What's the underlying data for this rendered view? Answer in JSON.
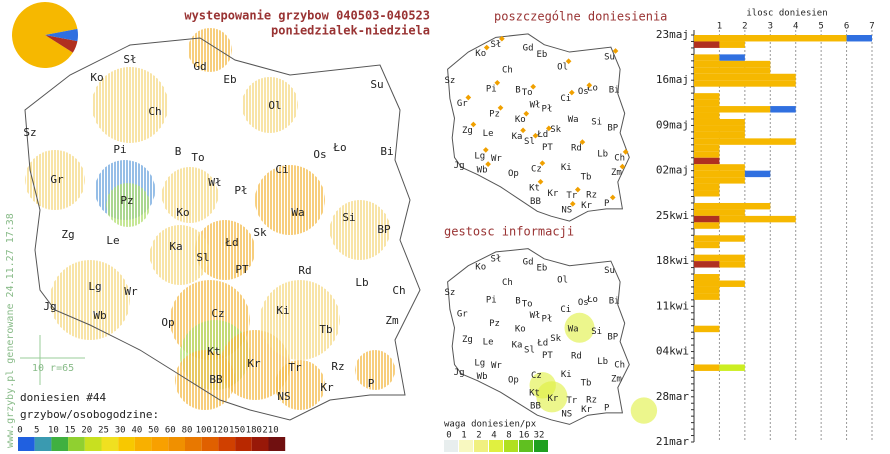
{
  "header": {
    "title": "wystepowanie grzybow 040503-040523",
    "subtitle": "poniedzialek-niedziela"
  },
  "pie": {
    "values": [
      88,
      6,
      6
    ],
    "colors": [
      "#f6b800",
      "#b03020",
      "#3070e0"
    ]
  },
  "map": {
    "labels": [
      "Sł",
      "Gd",
      "Ko",
      "Eb",
      "Su",
      "Ch",
      "Ol",
      "Sz",
      "Pi",
      "B",
      "To",
      "Ło",
      "Os",
      "Bi",
      "Gr",
      "Wł",
      "Ci",
      "Pł",
      "Pz",
      "Wa",
      "Ko",
      "Si",
      "Zg",
      "Le",
      "Ka",
      "Sk",
      "Łd",
      "BP",
      "Sl",
      "PT",
      "Rd",
      "Lb",
      "Lg",
      "Wr",
      "Ch",
      "Jg",
      "Wb",
      "Op",
      "Cz",
      "Ki",
      "Zm",
      "Tb",
      "Kt",
      "Kr",
      "Tr",
      "Rz",
      "P",
      "BB",
      "NS",
      "Kr"
    ]
  },
  "side_note": "www.grzyby.pl generowane 24.11.27 17:38",
  "scale_note": "10 r=65",
  "report_count": "doniesien #44",
  "legend": {
    "title": "grzybow/osobogodzine:",
    "ticks": [
      0,
      5,
      10,
      15,
      20,
      25,
      30,
      40,
      50,
      60,
      80,
      100,
      120,
      150,
      180,
      210
    ],
    "colors": [
      "#2060e0",
      "#3a9ab0",
      "#40b040",
      "#90d030",
      "#c8e020",
      "#f0e020",
      "#f8c800",
      "#f8b000",
      "#f8a000",
      "#f09000",
      "#e87800",
      "#e06000",
      "#d04000",
      "#b82800",
      "#981808",
      "#701010"
    ]
  },
  "small_map1": {
    "title": "poszczególne doniesienia"
  },
  "small_map2": {
    "title": "gestosc informacji"
  },
  "weight_legend": {
    "title": "waga doniesien/px",
    "ticks": [
      0,
      1,
      2,
      4,
      8,
      16,
      32
    ],
    "colors": [
      "#e8eeee",
      "#f8f8c0",
      "#f0f080",
      "#e0f040",
      "#b0e020",
      "#60c020",
      "#20a020"
    ]
  },
  "chart_data": {
    "type": "bar",
    "orientation": "horizontal",
    "x_label": "ilosc doniesien",
    "xlim": [
      0,
      7
    ],
    "xticks": [
      1,
      2,
      3,
      4,
      5,
      6,
      7
    ],
    "grid": true,
    "categories": [
      "23maj",
      null,
      null,
      null,
      null,
      null,
      null,
      "16maj",
      null,
      null,
      null,
      null,
      null,
      null,
      "09maj",
      null,
      null,
      null,
      null,
      null,
      null,
      "02maj",
      null,
      null,
      null,
      null,
      null,
      null,
      "25kwi",
      null,
      null,
      null,
      null,
      null,
      null,
      "18kwi",
      null,
      null,
      null,
      null,
      null,
      null,
      "11kwi",
      null,
      null,
      null,
      null,
      null,
      null,
      "04kwi",
      null,
      null,
      null,
      null,
      null,
      null,
      "28mar",
      null,
      null,
      null,
      null,
      null,
      null,
      "21mar"
    ],
    "series": [
      {
        "color": "#b03020",
        "values": [
          0,
          1,
          0,
          0,
          0,
          0,
          0,
          0,
          0,
          0,
          0,
          0,
          0,
          0,
          0,
          0,
          0,
          0,
          0,
          1,
          0,
          0,
          0,
          0,
          0,
          0,
          0,
          0,
          1,
          0,
          0,
          0,
          0,
          0,
          0,
          1,
          0,
          0,
          0,
          0,
          0,
          0,
          0,
          0,
          0,
          0,
          0,
          0,
          0,
          0,
          0,
          0,
          0,
          0,
          0,
          0,
          0,
          0,
          0,
          0,
          0,
          0,
          0,
          0
        ]
      },
      {
        "color": "#f6b800",
        "values": [
          6,
          1,
          0,
          1,
          3,
          3,
          4,
          4,
          0,
          1,
          1,
          3,
          1,
          2,
          2,
          2,
          4,
          1,
          1,
          0,
          2,
          2,
          2,
          1,
          1,
          0,
          3,
          2,
          3,
          1,
          0,
          2,
          1,
          0,
          2,
          1,
          0,
          1,
          2,
          1,
          1,
          0,
          0,
          0,
          0,
          1,
          0,
          0,
          0,
          0,
          0,
          1,
          0,
          0,
          0,
          0,
          0,
          0,
          0,
          0,
          0,
          0,
          0,
          0
        ]
      },
      {
        "color": "#3070e0",
        "values": [
          1,
          0,
          0,
          1,
          0,
          0,
          0,
          0,
          0,
          0,
          0,
          1,
          0,
          0,
          0,
          0,
          0,
          0,
          0,
          0,
          0,
          1,
          0,
          0,
          0,
          0,
          0,
          0,
          0,
          0,
          0,
          0,
          0,
          0,
          0,
          0,
          0,
          0,
          0,
          0,
          0,
          0,
          0,
          0,
          0,
          0,
          0,
          0,
          0,
          0,
          0,
          0,
          0,
          0,
          0,
          0,
          0,
          0,
          0,
          0,
          0,
          0,
          0,
          0
        ]
      },
      {
        "color": "#ccee22",
        "values": [
          0,
          0,
          0,
          0,
          0,
          0,
          0,
          0,
          0,
          0,
          0,
          0,
          0,
          0,
          0,
          0,
          0,
          0,
          0,
          0,
          0,
          0,
          0,
          0,
          0,
          0,
          0,
          0,
          0,
          0,
          0,
          0,
          0,
          0,
          0,
          0,
          0,
          0,
          0,
          0,
          0,
          0,
          0,
          0,
          0,
          0,
          0,
          0,
          0,
          0,
          0,
          1,
          0,
          0,
          0,
          0,
          0,
          0,
          0,
          0,
          0,
          0,
          0,
          0
        ]
      }
    ]
  }
}
